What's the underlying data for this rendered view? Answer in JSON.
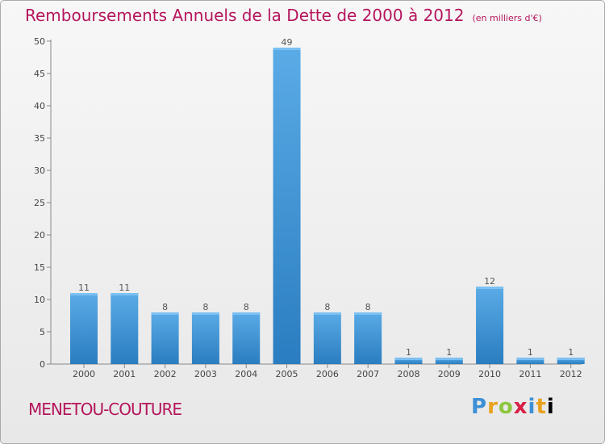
{
  "header": {
    "title": "Remboursements Annuels de la Dette de 2000 à 2012",
    "subtitle": "(en milliers d'€)"
  },
  "footer": {
    "commune": "MENETOU-COUTURE",
    "logo": "Proxiti"
  },
  "colors": {
    "accent": "#b5155c",
    "bar_light": "#5aabe6",
    "bar_dark": "#2a7dc0"
  },
  "chart_data": {
    "type": "bar",
    "categories": [
      "2000",
      "2001",
      "2002",
      "2003",
      "2004",
      "2005",
      "2006",
      "2007",
      "2008",
      "2009",
      "2010",
      "2011",
      "2012"
    ],
    "values": [
      11,
      11,
      8,
      8,
      8,
      49,
      8,
      8,
      1,
      1,
      12,
      1,
      1
    ],
    "title": "Remboursements Annuels de la Dette de 2000 à 2012",
    "subtitle": "(en milliers d'€)",
    "ylim": [
      0,
      50
    ],
    "yticks": [
      0,
      5,
      10,
      15,
      20,
      25,
      30,
      35,
      40,
      45,
      50
    ],
    "grid": false,
    "data_labels": true
  }
}
